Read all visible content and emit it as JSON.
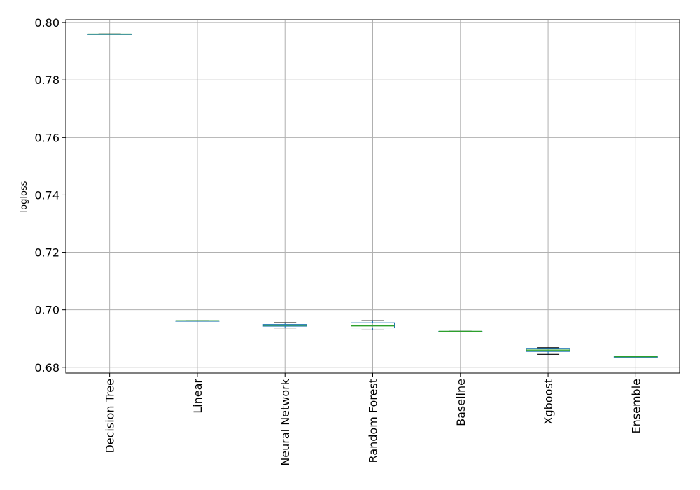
{
  "chart_data": {
    "type": "box",
    "title": "",
    "xlabel": "",
    "ylabel": "logloss",
    "ylim": [
      0.678,
      0.801
    ],
    "yticks": [
      0.68,
      0.7,
      0.72,
      0.74,
      0.76,
      0.78,
      0.8
    ],
    "ytick_labels": [
      "0.68",
      "0.70",
      "0.72",
      "0.74",
      "0.76",
      "0.78",
      "0.80"
    ],
    "grid": true,
    "x_tick_rotation": "vertical",
    "colors": {
      "box": "#1f77b4",
      "median": "#2ca02c",
      "whisker": "#000000",
      "grid": "#b0b0b0"
    },
    "categories": [
      "Decision Tree",
      "Linear",
      "Neural Network",
      "Random Forest",
      "Baseline",
      "Xgboost",
      "Ensemble"
    ],
    "boxes": [
      {
        "category": "Decision Tree",
        "min": 0.796,
        "q1": 0.796,
        "median": 0.796,
        "q3": 0.796,
        "max": 0.796
      },
      {
        "category": "Linear",
        "min": 0.6962,
        "q1": 0.6962,
        "median": 0.6962,
        "q3": 0.6962,
        "max": 0.6962
      },
      {
        "category": "Neural Network",
        "min": 0.6937,
        "q1": 0.6943,
        "median": 0.6946,
        "q3": 0.6949,
        "max": 0.6955
      },
      {
        "category": "Random Forest",
        "min": 0.693,
        "q1": 0.6937,
        "median": 0.6944,
        "q3": 0.6955,
        "max": 0.6962
      },
      {
        "category": "Baseline",
        "min": 0.6925,
        "q1": 0.6925,
        "median": 0.6925,
        "q3": 0.6925,
        "max": 0.6925
      },
      {
        "category": "Xgboost",
        "min": 0.6845,
        "q1": 0.6855,
        "median": 0.686,
        "q3": 0.6866,
        "max": 0.6868
      },
      {
        "category": "Ensemble",
        "min": 0.6837,
        "q1": 0.6837,
        "median": 0.6837,
        "q3": 0.6837,
        "max": 0.6837
      }
    ]
  }
}
